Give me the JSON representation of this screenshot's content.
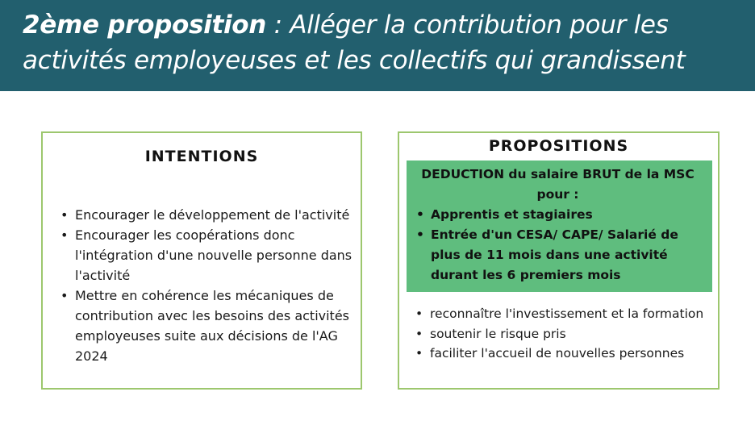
{
  "header": {
    "title_bold": "2ème proposition",
    "title_rest": " : Alléger la contribution pour les activités employeuses et les collectifs qui grandissent"
  },
  "intentions": {
    "title": "INTENTIONS",
    "items": [
      "Encourager le développement de l'activité",
      "Encourager les coopérations donc l'intégration d'une nouvelle personne dans l'activité",
      "Mettre en cohérence les mécaniques de contribution avec les besoins des activités employeuses suite aux décisions de l'AG 2024"
    ]
  },
  "propositions": {
    "title": "PROPOSITIONS",
    "highlight": {
      "heading": "DEDUCTION du salaire BRUT de la MSC pour :",
      "items": [
        "Apprentis et stagiaires",
        "Entrée d'un CESA/ CAPE/ Salarié de plus de 11 mois dans une activité durant les 6 premiers mois"
      ]
    },
    "items": [
      "reconnaître l'investissement et la formation",
      "soutenir le risque pris",
      "faciliter l'accueil de nouvelles personnes"
    ]
  },
  "colors": {
    "header_bg": "#225f6e",
    "highlight_bg": "#5fbd7e",
    "border": "#9dc76e"
  }
}
